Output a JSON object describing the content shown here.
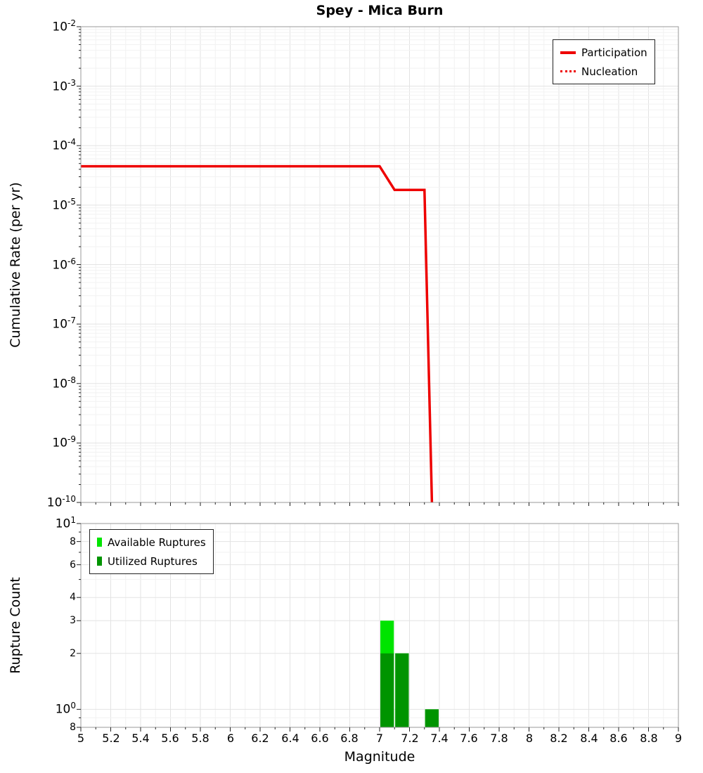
{
  "colors": {
    "participation": "#ee0000",
    "nucleation": "#ee0000",
    "available": "#00e400",
    "utilized": "#009400",
    "grid_major": "#e3e3e3",
    "grid_minor": "#f2f2f2",
    "plot_border": "#999999"
  },
  "chart_data": [
    {
      "type": "line",
      "title": "Spey - Mica Burn",
      "xlabel": "",
      "ylabel": "Cumulative Rate (per yr)",
      "xlim": [
        5,
        9
      ],
      "ylim": [
        1e-10,
        0.01
      ],
      "yscale": "log",
      "xscale": "linear",
      "grid": true,
      "legend_position": "top-right",
      "y_tick_exponents": [
        -2,
        -3,
        -4,
        -5,
        -6,
        -7,
        -8,
        -9,
        -10
      ],
      "series": [
        {
          "name": "Participation",
          "color": "#ee0000",
          "style": "solid",
          "width": 3.5,
          "x": [
            5.0,
            7.0,
            7.1,
            7.3,
            7.35
          ],
          "y": [
            4.5e-05,
            4.5e-05,
            1.8e-05,
            1.8e-05,
            1e-10
          ]
        },
        {
          "name": "Nucleation",
          "color": "#ee0000",
          "style": "dotted",
          "width": 2.5,
          "x": [
            5.0,
            7.0,
            7.1,
            7.3,
            7.35
          ],
          "y": [
            4.5e-05,
            4.5e-05,
            1.8e-05,
            1.8e-05,
            1e-10
          ]
        }
      ]
    },
    {
      "type": "bar",
      "title": "",
      "xlabel": "Magnitude",
      "ylabel": "Rupture Count",
      "xlim": [
        5,
        9
      ],
      "ylim": [
        0.8,
        10
      ],
      "yscale": "log",
      "xscale": "linear",
      "grid": true,
      "legend_position": "top-left",
      "bin_width": 0.1,
      "y_ticks": [
        {
          "value": 10,
          "base": "10",
          "exp": "1"
        },
        {
          "value": 8,
          "base": "8"
        },
        {
          "value": 6,
          "base": "6"
        },
        {
          "value": 4,
          "base": "4"
        },
        {
          "value": 3,
          "base": "3"
        },
        {
          "value": 2,
          "base": "2"
        },
        {
          "value": 1,
          "base": "10",
          "exp": "0"
        },
        {
          "value": 0.8,
          "base": "8"
        }
      ],
      "x_ticks": [
        {
          "value": 5,
          "label": "5"
        },
        {
          "value": 5.2,
          "label": "5.2"
        },
        {
          "value": 5.4,
          "label": "5.4"
        },
        {
          "value": 5.6,
          "label": "5.6"
        },
        {
          "value": 5.8,
          "label": "5.8"
        },
        {
          "value": 6,
          "label": "6"
        },
        {
          "value": 6.2,
          "label": "6.2"
        },
        {
          "value": 6.4,
          "label": "6.4"
        },
        {
          "value": 6.6,
          "label": "6.6"
        },
        {
          "value": 6.8,
          "label": "6.8"
        },
        {
          "value": 7,
          "label": "7"
        },
        {
          "value": 7.2,
          "label": "7.2"
        },
        {
          "value": 7.4,
          "label": "7.4"
        },
        {
          "value": 7.6,
          "label": "7.6"
        },
        {
          "value": 7.8,
          "label": "7.8"
        },
        {
          "value": 8,
          "label": "8"
        },
        {
          "value": 8.2,
          "label": "8.2"
        },
        {
          "value": 8.4,
          "label": "8.4"
        },
        {
          "value": 8.6,
          "label": "8.6"
        },
        {
          "value": 8.8,
          "label": "8.8"
        },
        {
          "value": 9,
          "label": "9"
        }
      ],
      "series": [
        {
          "name": "Available Ruptures",
          "color": "#00e400",
          "bins": [
            {
              "mag": 7.05,
              "count": 3
            },
            {
              "mag": 7.15,
              "count": 2
            },
            {
              "mag": 7.35,
              "count": 1
            }
          ]
        },
        {
          "name": "Utilized Ruptures",
          "color": "#009400",
          "bins": [
            {
              "mag": 7.05,
              "count": 2
            },
            {
              "mag": 7.15,
              "count": 2
            },
            {
              "mag": 7.35,
              "count": 1
            }
          ]
        }
      ]
    }
  ]
}
